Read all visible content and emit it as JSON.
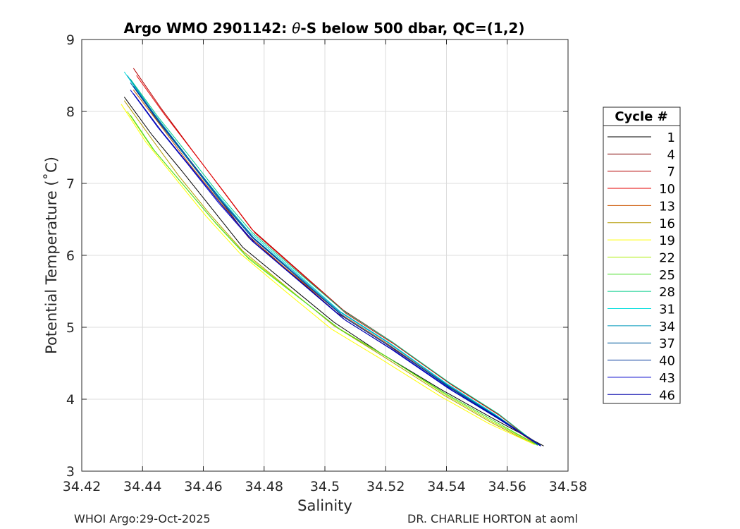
{
  "chart_data": {
    "type": "line",
    "title": "Argo WMO 2901142: θ-S below 500 dbar,  QC=(1,2)",
    "title_parts": {
      "prefix": "Argo WMO 2901142: ",
      "symbol": "θ",
      "suffix": "-S below 500 dbar,  QC=(1,2)"
    },
    "xlabel": "Salinity",
    "ylabel": "Potential Temperature (˚C)",
    "xlim": [
      34.42,
      34.58
    ],
    "ylim": [
      3,
      9
    ],
    "xticks": [
      34.42,
      34.44,
      34.46,
      34.48,
      34.5,
      34.52,
      34.54,
      34.56,
      34.58
    ],
    "xtick_labels": [
      "34.42",
      "34.44",
      "34.46",
      "34.48",
      "34.5",
      "34.52",
      "34.54",
      "34.56",
      "34.58"
    ],
    "yticks": [
      3,
      4,
      5,
      6,
      7,
      8,
      9
    ],
    "ytick_labels": [
      "3",
      "4",
      "5",
      "6",
      "7",
      "8",
      "9"
    ],
    "grid": true,
    "legend": {
      "title": "Cycle #",
      "position": "right"
    },
    "reference_profile": {
      "salinity": [
        34.437,
        34.445,
        34.455,
        34.465,
        34.475,
        34.49,
        34.505,
        34.52,
        34.54,
        34.556,
        34.571
      ],
      "theta": [
        8.0,
        7.5,
        7.0,
        6.5,
        6.0,
        5.5,
        5.0,
        4.6,
        4.1,
        3.7,
        3.35
      ]
    },
    "series": [
      {
        "name": "1",
        "color": "#000000",
        "salinity": [
          34.434,
          34.443,
          34.453,
          34.463,
          34.473,
          34.488,
          34.503,
          34.518,
          34.538,
          34.555,
          34.572
        ],
        "theta": [
          8.2,
          7.68,
          7.17,
          6.64,
          6.11,
          5.59,
          5.07,
          4.65,
          4.14,
          3.74,
          3.35
        ]
      },
      {
        "name": "4",
        "color": "#800000",
        "salinity": [
          34.436,
          34.444,
          34.454,
          34.464,
          34.474,
          34.489,
          34.504,
          34.52,
          34.54,
          34.556,
          34.571
        ],
        "theta": [
          8.45,
          7.92,
          7.4,
          6.85,
          6.3,
          5.75,
          5.2,
          4.77,
          4.2,
          3.78,
          3.36
        ]
      },
      {
        "name": "7",
        "color": "#b30000",
        "salinity": [
          34.437,
          34.446,
          34.456,
          34.466,
          34.476,
          34.491,
          34.506,
          34.522,
          34.541,
          34.557,
          34.57
        ],
        "theta": [
          8.6,
          8.05,
          7.48,
          6.92,
          6.36,
          5.8,
          5.24,
          4.8,
          4.22,
          3.79,
          3.37
        ]
      },
      {
        "name": "10",
        "color": "#e60000",
        "salinity": [
          34.438,
          34.447,
          34.457,
          34.467,
          34.477,
          34.492,
          34.507,
          34.523,
          34.542,
          34.558,
          34.57
        ],
        "theta": [
          8.5,
          7.97,
          7.42,
          6.87,
          6.31,
          5.75,
          5.19,
          4.76,
          4.19,
          3.76,
          3.36
        ]
      },
      {
        "name": "13",
        "color": "#cc5500",
        "salinity": [
          34.437,
          34.446,
          34.455,
          34.465,
          34.475,
          34.49,
          34.505,
          34.521,
          34.54,
          34.556,
          34.57
        ],
        "theta": [
          8.3,
          7.8,
          7.29,
          6.77,
          6.24,
          5.72,
          5.19,
          4.76,
          4.2,
          3.77,
          3.36
        ]
      },
      {
        "name": "16",
        "color": "#b39b00",
        "salinity": [
          34.434,
          34.443,
          34.452,
          34.462,
          34.473,
          34.488,
          34.503,
          34.519,
          34.539,
          34.555,
          34.569
        ],
        "theta": [
          8.15,
          7.62,
          7.1,
          6.58,
          6.06,
          5.54,
          5.02,
          4.6,
          4.06,
          3.67,
          3.37
        ]
      },
      {
        "name": "19",
        "color": "#ffff00",
        "salinity": [
          34.433,
          34.441,
          34.451,
          34.461,
          34.472,
          34.487,
          34.502,
          34.518,
          34.538,
          34.554,
          34.569
        ],
        "theta": [
          8.1,
          7.58,
          7.06,
          6.54,
          6.03,
          5.5,
          4.98,
          4.57,
          4.04,
          3.66,
          3.37
        ]
      },
      {
        "name": "22",
        "color": "#aaee00",
        "salinity": [
          34.435,
          34.443,
          34.453,
          34.463,
          34.474,
          34.489,
          34.504,
          34.52,
          34.539,
          34.555,
          34.57
        ],
        "theta": [
          8.0,
          7.5,
          7.0,
          6.5,
          6.0,
          5.5,
          5.0,
          4.6,
          4.08,
          3.69,
          3.36
        ]
      },
      {
        "name": "25",
        "color": "#44dd22",
        "salinity": [
          34.436,
          34.444,
          34.454,
          34.464,
          34.475,
          34.49,
          34.505,
          34.521,
          34.54,
          34.556,
          34.57
        ],
        "theta": [
          7.95,
          7.45,
          6.95,
          6.45,
          5.95,
          5.46,
          4.97,
          4.57,
          4.07,
          3.69,
          3.36
        ]
      },
      {
        "name": "28",
        "color": "#00cc88",
        "salinity": [
          34.436,
          34.445,
          34.455,
          34.465,
          34.476,
          34.491,
          34.506,
          34.522,
          34.541,
          34.557,
          34.57
        ],
        "theta": [
          8.45,
          7.93,
          7.4,
          6.86,
          6.32,
          5.77,
          5.23,
          4.8,
          4.23,
          3.8,
          3.37
        ]
      },
      {
        "name": "31",
        "color": "#00dddd",
        "salinity": [
          34.434,
          34.443,
          34.453,
          34.464,
          34.475,
          34.49,
          34.505,
          34.521,
          34.54,
          34.556,
          34.57
        ],
        "theta": [
          8.55,
          8.0,
          7.45,
          6.88,
          6.33,
          5.78,
          5.22,
          4.79,
          4.22,
          3.79,
          3.37
        ]
      },
      {
        "name": "34",
        "color": "#0099bb",
        "salinity": [
          34.435,
          34.444,
          34.454,
          34.464,
          34.475,
          34.49,
          34.505,
          34.521,
          34.54,
          34.556,
          34.57
        ],
        "theta": [
          8.5,
          7.96,
          7.41,
          6.85,
          6.3,
          5.76,
          5.21,
          4.78,
          4.21,
          3.78,
          3.37
        ]
      },
      {
        "name": "37",
        "color": "#005a9c",
        "salinity": [
          34.436,
          34.445,
          34.455,
          34.465,
          34.476,
          34.491,
          34.506,
          34.522,
          34.541,
          34.557,
          34.571
        ],
        "theta": [
          8.4,
          7.87,
          7.33,
          6.79,
          6.25,
          5.7,
          5.15,
          4.72,
          4.16,
          3.74,
          3.36
        ]
      },
      {
        "name": "40",
        "color": "#003399",
        "salinity": [
          34.437,
          34.446,
          34.456,
          34.466,
          34.477,
          34.492,
          34.507,
          34.523,
          34.542,
          34.558,
          34.571
        ],
        "theta": [
          8.35,
          7.83,
          7.3,
          6.76,
          6.22,
          5.67,
          5.12,
          4.69,
          4.14,
          3.72,
          3.35
        ]
      },
      {
        "name": "43",
        "color": "#0000cc",
        "salinity": [
          34.436,
          34.445,
          34.455,
          34.465,
          34.476,
          34.491,
          34.506,
          34.522,
          34.541,
          34.557,
          34.571
        ],
        "theta": [
          8.3,
          7.78,
          7.26,
          6.73,
          6.2,
          5.66,
          5.12,
          4.69,
          4.14,
          3.73,
          3.35
        ]
      },
      {
        "name": "46",
        "color": "#0000aa",
        "salinity": [
          34.437,
          34.446,
          34.456,
          34.466,
          34.477,
          34.492,
          34.507,
          34.523,
          34.542,
          34.558,
          34.571
        ],
        "theta": [
          8.25,
          7.74,
          7.22,
          6.7,
          6.17,
          5.63,
          5.09,
          4.67,
          4.12,
          3.71,
          3.35
        ]
      }
    ]
  },
  "footer": {
    "left": "WHOI Argo:29-Oct-2025",
    "right": "DR. CHARLIE HORTON at aoml"
  }
}
